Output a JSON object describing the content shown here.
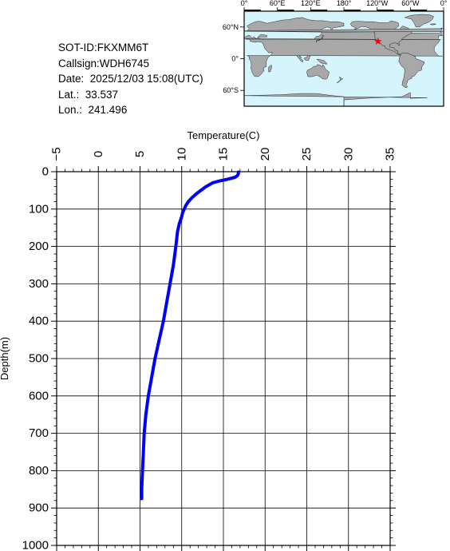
{
  "info": {
    "sot_id": "SOT-ID:FKXMM6T",
    "callsign": "Callsign:WDH6745",
    "date": "Date:  2025/12/03 15:08(UTC)",
    "lat": "Lat.:  33.537",
    "lon": "Lon.:  241.496"
  },
  "map": {
    "lon_labels": [
      "0°",
      "60°E",
      "120°E",
      "180°",
      "120°W",
      "60°W",
      "0°"
    ],
    "lat_labels": [
      "60°N",
      "0°",
      "60°S"
    ],
    "marker_lat": 33.537,
    "marker_lon": 241.496,
    "ocean_color": "#d6f4fb",
    "land_color": "#a8a8a8",
    "marker_color": "#ff0000",
    "marker_icon": "star-icon"
  },
  "chart_data": {
    "type": "line",
    "xlabel": "Temperature(C)",
    "ylabel": "Depth(m)",
    "xlim": [
      -5,
      35
    ],
    "ylim": [
      0,
      1000
    ],
    "y_inverted": true,
    "x_axis_position": "top",
    "grid": true,
    "x_ticks": [
      "−5",
      "0",
      "5",
      "10",
      "15",
      "20",
      "25",
      "30",
      "35"
    ],
    "y_ticks": [
      "0",
      "100",
      "200",
      "300",
      "400",
      "500",
      "600",
      "700",
      "800",
      "900",
      "1000"
    ],
    "series_color": "#0000ff",
    "series": [
      {
        "depth": [
          1,
          5,
          10,
          15,
          20,
          25,
          30,
          40,
          50,
          60,
          70,
          80,
          90,
          100,
          110,
          120,
          140,
          150,
          160,
          200,
          250,
          300,
          350,
          400,
          450,
          500,
          550,
          600,
          650,
          700,
          750,
          800,
          850,
          875
        ],
        "temp": [
          16.8,
          16.8,
          16.7,
          16.4,
          15.5,
          14.5,
          13.7,
          12.9,
          12.3,
          11.7,
          11.2,
          10.8,
          10.5,
          10.3,
          10.1,
          10.0,
          9.7,
          9.6,
          9.5,
          9.3,
          9.0,
          8.6,
          8.2,
          7.8,
          7.3,
          6.8,
          6.4,
          6.0,
          5.7,
          5.5,
          5.4,
          5.3,
          5.2,
          5.2
        ]
      }
    ]
  }
}
